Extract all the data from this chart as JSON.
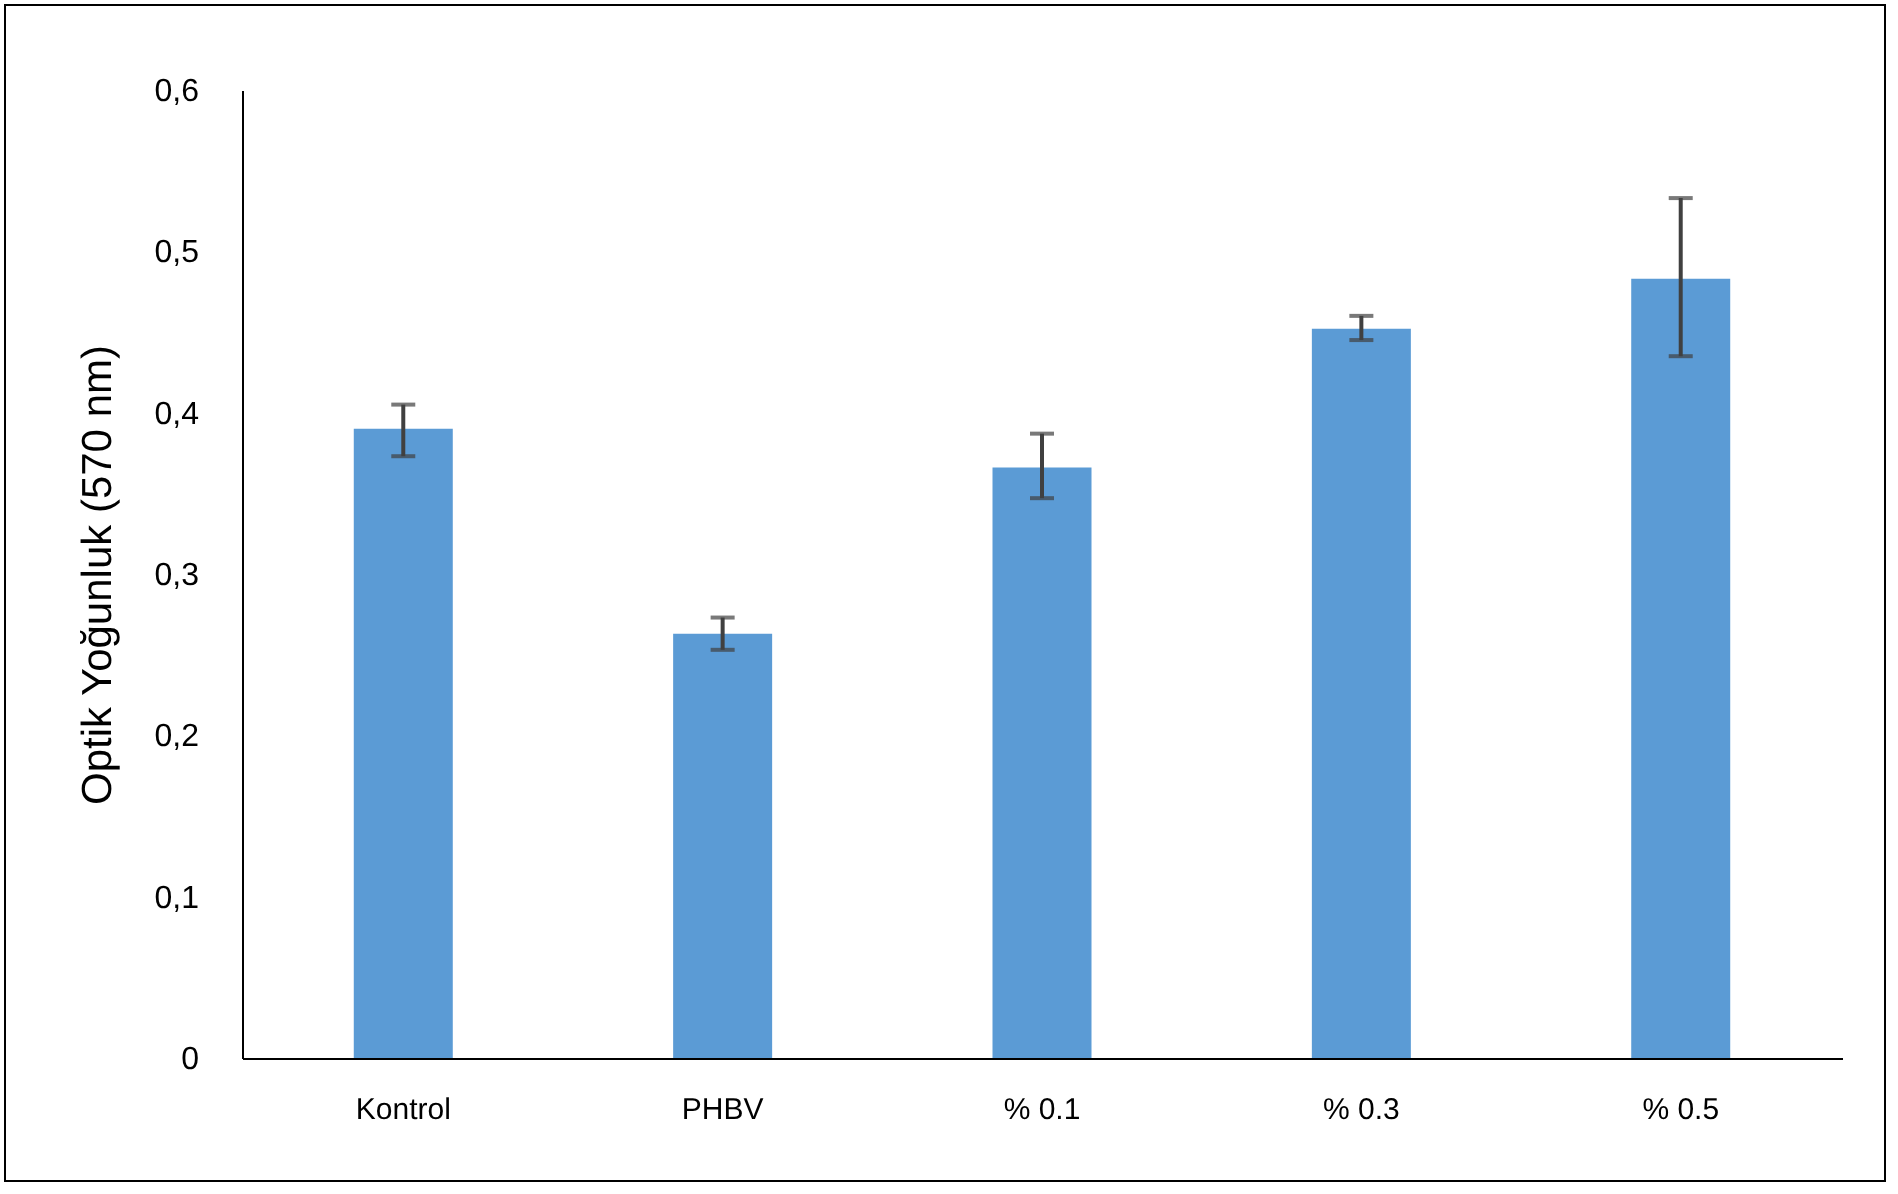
{
  "chart_data": {
    "type": "bar",
    "ylabel": "Optik Yoğunluk (570 nm)",
    "categories": [
      "Kontrol",
      "PHBV",
      "% 0.1",
      "% 0.3",
      "% 0.5"
    ],
    "color": "#5b9bd5",
    "values": [
      0.39,
      0.263,
      0.366,
      0.452,
      0.483
    ],
    "errors": [
      [
        0.373,
        0.405
      ],
      [
        0.253,
        0.273
      ],
      [
        0.347,
        0.387
      ],
      [
        0.445,
        0.46
      ],
      [
        0.435,
        0.533
      ]
    ],
    "ylim": [
      0,
      0.6
    ],
    "yticks": [
      0,
      {
        "value": 0.1,
        "label": "0,1"
      },
      {
        "value": 0.2,
        "label": "0,2"
      },
      {
        "value": 0.3,
        "label": "0,3"
      },
      {
        "value": 0.4,
        "label": "0,4"
      },
      {
        "value": 0.5,
        "label": "0,5"
      },
      {
        "value": 0.6,
        "label": "0,6"
      }
    ],
    "grid": false
  }
}
